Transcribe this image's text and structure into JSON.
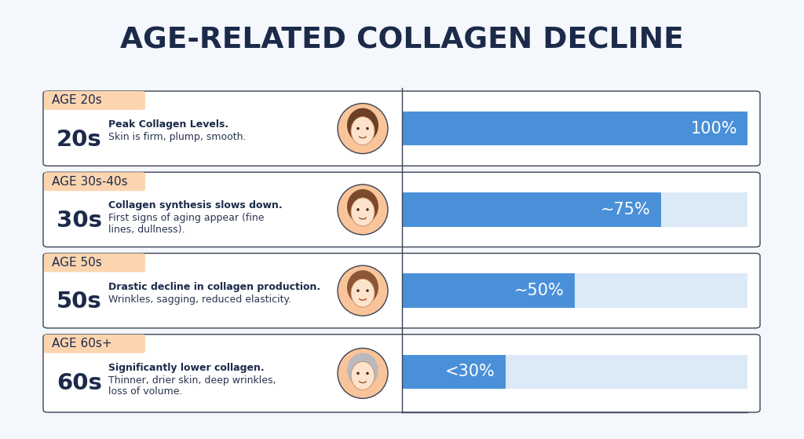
{
  "chart_data": {
    "type": "bar",
    "orientation": "horizontal",
    "title": "AGE-RELATED COLLAGEN DECLINE",
    "categories": [
      "20s",
      "30s",
      "50s",
      "60s"
    ],
    "tags": [
      "AGE 20s",
      "AGE 30s-40s",
      "AGE 50s",
      "AGE 60s+"
    ],
    "headings": [
      "Peak Collagen Levels.",
      "Collagen synthesis slows down.",
      "Drastic decline in collagen production.",
      "Significantly lower collagen."
    ],
    "descriptions": [
      "Skin is firm, plump, smooth.",
      "First signs of aging appear (fine lines, dullness).",
      "Wrinkles, sagging, reduced elasticity.",
      "Thinner, drier skin, deep wrinkles, loss of volume."
    ],
    "values": [
      100,
      75,
      50,
      30
    ],
    "value_labels": [
      "100%",
      "~75%",
      "~50%",
      "<30%"
    ],
    "data_labels": true,
    "xlim": [
      0,
      100
    ],
    "tick_labels": false,
    "color": "#4a90d9"
  }
}
